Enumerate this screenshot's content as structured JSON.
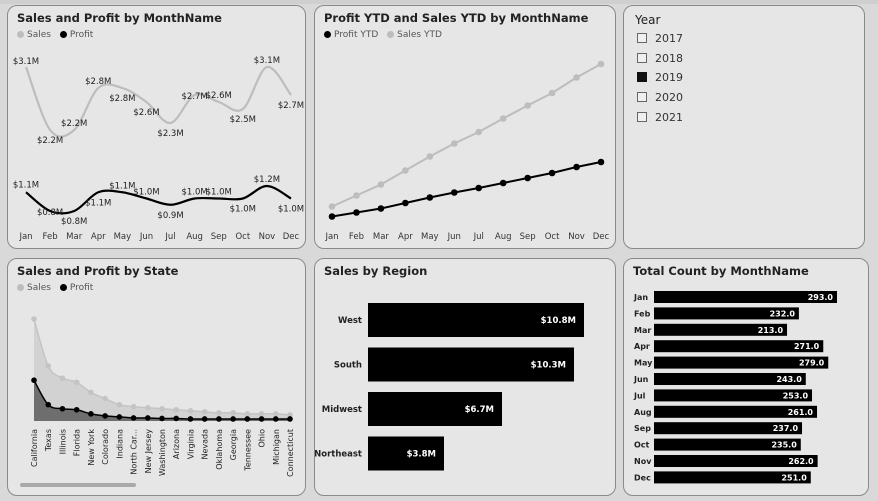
{
  "colors": {
    "sales": "#bdbdbd",
    "profit": "#000000",
    "bar": "#000000",
    "panel": "#e6e6e6"
  },
  "months": [
    "Jan",
    "Feb",
    "Mar",
    "Apr",
    "May",
    "Jun",
    "Jul",
    "Aug",
    "Sep",
    "Oct",
    "Nov",
    "Dec"
  ],
  "panel1": {
    "title": "Sales and Profit by MonthName",
    "legend": [
      "Sales",
      "Profit"
    ],
    "chart_data": {
      "type": "line",
      "categories": [
        "Jan",
        "Feb",
        "Mar",
        "Apr",
        "May",
        "Jun",
        "Jul",
        "Aug",
        "Sep",
        "Oct",
        "Nov",
        "Dec"
      ],
      "series": [
        {
          "name": "Sales",
          "values": [
            3.1,
            2.2,
            2.2,
            2.8,
            2.8,
            2.6,
            2.3,
            2.7,
            2.6,
            2.5,
            3.1,
            2.7
          ],
          "labels": [
            "$3.1M",
            "$2.2M",
            "$2.2M",
            "$2.8M",
            "$2.8M",
            "$2.6M",
            "$2.3M",
            "$2.7M",
            "$2.6M",
            "$2.5M",
            "$3.1M",
            "$2.7M"
          ]
        },
        {
          "name": "Profit",
          "values": [
            1.1,
            0.8,
            0.8,
            1.1,
            1.1,
            1.0,
            0.9,
            1.0,
            1.0,
            1.0,
            1.2,
            1.0
          ],
          "labels": [
            "$1.1M",
            "$0.8M",
            "$0.8M",
            "$1.1M",
            "$1.1M",
            "$1.0M",
            "$0.9M",
            "$1.0M",
            "$1.0M",
            "$1.0M",
            "$1.2M",
            "$1.0M"
          ]
        }
      ]
    }
  },
  "panel2": {
    "title": "Profit YTD and Sales YTD by MonthName",
    "legend": [
      "Profit YTD",
      "Sales YTD"
    ],
    "chart_data": {
      "type": "line",
      "categories": [
        "Jan",
        "Feb",
        "Mar",
        "Apr",
        "May",
        "Jun",
        "Jul",
        "Aug",
        "Sep",
        "Oct",
        "Nov",
        "Dec"
      ],
      "series": [
        {
          "name": "Profit YTD",
          "values": [
            1.1,
            1.9,
            2.7,
            3.8,
            4.9,
            5.9,
            6.8,
            7.8,
            8.8,
            9.8,
            11.0,
            12.0
          ]
        },
        {
          "name": "Sales YTD",
          "values": [
            3.1,
            5.3,
            7.5,
            10.3,
            13.1,
            15.7,
            18.0,
            20.7,
            23.3,
            25.8,
            28.9,
            31.6
          ]
        }
      ]
    }
  },
  "slicer": {
    "title": "Year",
    "items": [
      {
        "label": "2017",
        "checked": false
      },
      {
        "label": "2018",
        "checked": false
      },
      {
        "label": "2019",
        "checked": true
      },
      {
        "label": "2020",
        "checked": false
      },
      {
        "label": "2021",
        "checked": false
      }
    ]
  },
  "panel4": {
    "title": "Sales and Profit by State",
    "legend": [
      "Sales",
      "Profit"
    ],
    "chart_data": {
      "type": "area",
      "categories": [
        "California",
        "Texas",
        "Illinois",
        "Florida",
        "New York",
        "Colorado",
        "Indiana",
        "North Car...",
        "New Jersey",
        "Washington",
        "Arizona",
        "Virginia",
        "Nevada",
        "Oklahoma",
        "Georgia",
        "Tennessee",
        "Ohio",
        "Michigan",
        "Connecticut"
      ],
      "series": [
        {
          "name": "Sales",
          "values": [
            100,
            54,
            42,
            38,
            28,
            22,
            16,
            14,
            13,
            12,
            11,
            10,
            9,
            8,
            8,
            7,
            7,
            7,
            6
          ]
        },
        {
          "name": "Profit",
          "values": [
            40,
            16,
            12,
            11,
            7,
            5,
            4,
            3,
            3,
            2.5,
            2.5,
            2,
            2,
            2,
            2,
            2,
            2,
            2,
            2
          ]
        }
      ]
    }
  },
  "panel5": {
    "title": "Sales by Region",
    "chart_data": {
      "type": "bar",
      "categories": [
        "West",
        "South",
        "Midwest",
        "Northeast"
      ],
      "values": [
        10.8,
        10.3,
        6.7,
        3.8
      ],
      "labels": [
        "$10.8M",
        "$10.3M",
        "$6.7M",
        "$3.8M"
      ]
    }
  },
  "panel6": {
    "title": "Total Count by MonthName",
    "chart_data": {
      "type": "bar",
      "categories": [
        "Jan",
        "Feb",
        "Mar",
        "Apr",
        "May",
        "Jun",
        "Jul",
        "Aug",
        "Sep",
        "Oct",
        "Nov",
        "Dec"
      ],
      "values": [
        293,
        232,
        213,
        271,
        279,
        243,
        253,
        261,
        237,
        235,
        262,
        251
      ],
      "labels": [
        "293.0",
        "232.0",
        "213.0",
        "271.0",
        "279.0",
        "243.0",
        "253.0",
        "261.0",
        "237.0",
        "235.0",
        "262.0",
        "251.0"
      ]
    }
  }
}
